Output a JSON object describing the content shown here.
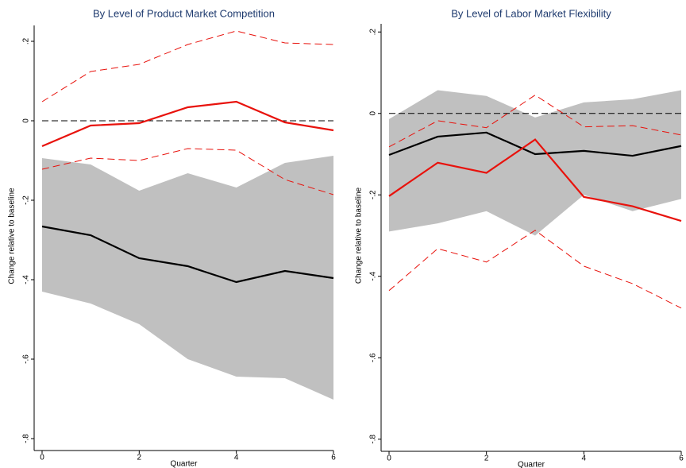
{
  "chart_data": [
    {
      "type": "line",
      "title": "By Level of Product Market Competition",
      "xlabel": "Quarter",
      "ylabel": "Change relative to baseline",
      "x": [
        0,
        1,
        2,
        3,
        4,
        5,
        6
      ],
      "xlim": [
        0,
        6
      ],
      "xticks": [
        0,
        2,
        4,
        6
      ],
      "ylim": [
        -0.82,
        0.24
      ],
      "yticks": [
        {
          "value": -0.8,
          "label": "-.8"
        },
        {
          "value": -0.6,
          "label": "-.6"
        },
        {
          "value": -0.4,
          "label": "-.4"
        },
        {
          "value": -0.2,
          "label": "-.2"
        },
        0,
        {
          "value": 0.2,
          "label": ".2"
        }
      ],
      "hline": 0,
      "band": {
        "color": "#c0c0c0",
        "upper": [
          -0.094,
          -0.11,
          -0.176,
          -0.132,
          -0.168,
          -0.106,
          -0.088
        ],
        "lower": [
          -0.43,
          -0.46,
          -0.512,
          -0.6,
          -0.644,
          -0.648,
          -0.702
        ]
      },
      "series": [
        {
          "color": "#000000",
          "dash": false,
          "values": [
            -0.266,
            -0.288,
            -0.346,
            -0.366,
            -0.406,
            -0.378,
            -0.396
          ]
        },
        {
          "color": "#e8120c",
          "dash": false,
          "values": [
            -0.064,
            -0.012,
            -0.006,
            0.034,
            0.048,
            -0.004,
            -0.024
          ]
        },
        {
          "color": "#e8120c",
          "dash": true,
          "values": [
            0.048,
            0.124,
            0.142,
            0.192,
            0.226,
            0.196,
            0.192
          ]
        },
        {
          "color": "#e8120c",
          "dash": true,
          "values": [
            -0.122,
            -0.094,
            -0.1,
            -0.07,
            -0.074,
            -0.148,
            -0.186
          ]
        }
      ]
    },
    {
      "type": "line",
      "title": "By Level of Labor Market Flexibility",
      "xlabel": "Quarter",
      "ylabel": "Change relative to baseline",
      "x": [
        0,
        1,
        2,
        3,
        4,
        5,
        6
      ],
      "xlim": [
        0,
        6
      ],
      "xticks": [
        0,
        2,
        4,
        6
      ],
      "ylim": [
        -0.82,
        0.22
      ],
      "yticks": [
        {
          "value": -0.8,
          "label": "-.8"
        },
        {
          "value": -0.6,
          "label": "-.6"
        },
        {
          "value": -0.4,
          "label": "-.4"
        },
        {
          "value": -0.2,
          "label": "-.2"
        },
        0,
        {
          "value": 0.2,
          "label": ".2"
        }
      ],
      "hline": 0,
      "band": {
        "color": "#c0c0c0",
        "upper": [
          -0.014,
          0.057,
          0.043,
          -0.01,
          0.027,
          0.035,
          0.057
        ],
        "lower": [
          -0.29,
          -0.27,
          -0.24,
          -0.3,
          -0.2,
          -0.24,
          -0.21
        ]
      },
      "series": [
        {
          "color": "#000000",
          "dash": false,
          "values": [
            -0.102,
            -0.057,
            -0.047,
            -0.1,
            -0.092,
            -0.104,
            -0.08
          ]
        },
        {
          "color": "#e8120c",
          "dash": false,
          "values": [
            -0.203,
            -0.121,
            -0.146,
            -0.064,
            -0.205,
            -0.228,
            -0.264
          ]
        },
        {
          "color": "#e8120c",
          "dash": true,
          "values": [
            -0.082,
            -0.018,
            -0.035,
            0.045,
            -0.033,
            -0.03,
            -0.053
          ]
        },
        {
          "color": "#e8120c",
          "dash": true,
          "values": [
            -0.435,
            -0.332,
            -0.365,
            -0.287,
            -0.375,
            -0.418,
            -0.478
          ]
        }
      ]
    }
  ]
}
